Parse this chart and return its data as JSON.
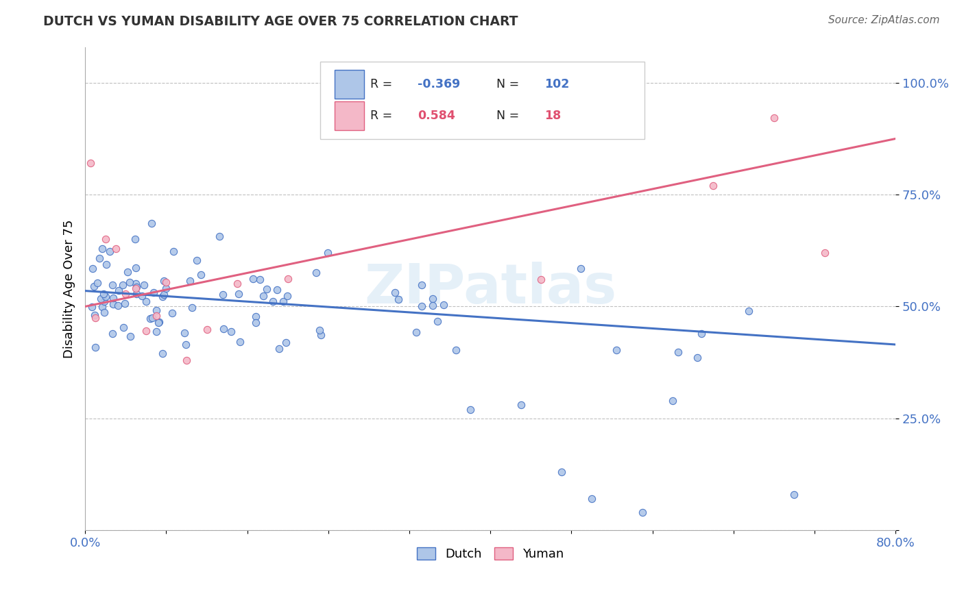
{
  "title": "DUTCH VS YUMAN DISABILITY AGE OVER 75 CORRELATION CHART",
  "source": "Source: ZipAtlas.com",
  "ylabel": "Disability Age Over 75",
  "xlim": [
    0.0,
    0.8
  ],
  "ylim": [
    0.0,
    1.08
  ],
  "dutch_R": -0.369,
  "dutch_N": 102,
  "yuman_R": 0.584,
  "yuman_N": 18,
  "dutch_color": "#aec6e8",
  "yuman_color": "#f4b8c8",
  "dutch_line_color": "#4472c4",
  "yuman_line_color": "#e06080",
  "dutch_line_x0": 0.0,
  "dutch_line_y0": 0.535,
  "dutch_line_x1": 0.8,
  "dutch_line_y1": 0.415,
  "yuman_line_x0": 0.0,
  "yuman_line_y0": 0.5,
  "yuman_line_x1": 0.8,
  "yuman_line_y1": 0.875
}
